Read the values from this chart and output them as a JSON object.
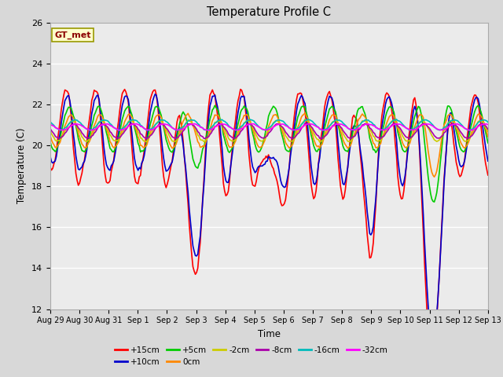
{
  "title": "Temperature Profile C",
  "xlabel": "Time",
  "ylabel": "Temperature (C)",
  "ylim": [
    12,
    26
  ],
  "yticks": [
    12,
    14,
    16,
    18,
    20,
    22,
    24,
    26
  ],
  "legend_label": "GT_met",
  "series_order": [
    "+15cm",
    "+10cm",
    "+5cm",
    "0cm",
    "-2cm",
    "-8cm",
    "-16cm",
    "-32cm"
  ],
  "series": {
    "+15cm": {
      "color": "#FF0000",
      "lw": 1.2
    },
    "+10cm": {
      "color": "#0000CC",
      "lw": 1.2
    },
    "+5cm": {
      "color": "#00CC00",
      "lw": 1.2
    },
    "0cm": {
      "color": "#FF8800",
      "lw": 1.2
    },
    "-2cm": {
      "color": "#CCCC00",
      "lw": 1.2
    },
    "-8cm": {
      "color": "#AA00AA",
      "lw": 1.2
    },
    "-16cm": {
      "color": "#00BBBB",
      "lw": 1.2
    },
    "-32cm": {
      "color": "#FF00FF",
      "lw": 1.2
    }
  },
  "bg_color": "#D8D8D8",
  "plot_bg": "#EBEBEB",
  "n_points": 360,
  "x_start": 0,
  "x_end": 15,
  "xtick_positions": [
    0,
    1,
    2,
    3,
    4,
    5,
    6,
    7,
    8,
    9,
    10,
    11,
    12,
    13,
    14,
    15
  ],
  "xtick_labels": [
    "Aug 29",
    "Aug 30",
    "Aug 31",
    "Sep 1",
    "Sep 2",
    "Sep 3",
    "Sep 4",
    "Sep 5",
    "Sep 6",
    "Sep 7",
    "Sep 8",
    "Sep 9",
    "Sep 10",
    "Sep 11",
    "Sep 12",
    "Sep 13"
  ]
}
